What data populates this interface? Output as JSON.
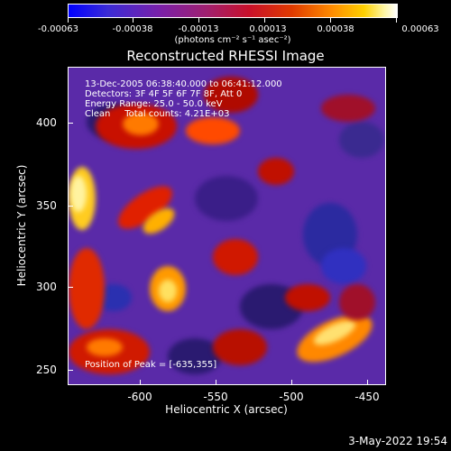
{
  "colorbar": {
    "tick_labels": [
      "-0.00063",
      "-0.00038",
      "-0.00013",
      "0.00013",
      "0.00038",
      "0.00063"
    ],
    "unit_label": "(photons cm⁻² s⁻¹ asec⁻²)"
  },
  "title": "Reconstructed RHESSI Image",
  "info": {
    "line1": "13-Dec-2005 06:38:40.000 to 06:41:12.000",
    "line2": "Detectors: 3F 4F 5F 6F 7F 8F, Att 0",
    "line3": "Energy Range: 25.0 - 50.0 keV",
    "line4": "Clean     Total counts: 4.21E+03",
    "peak": "Position of Peak = [-635,355]"
  },
  "x_axis": {
    "title": "Heliocentric X (arcsec)",
    "tick_labels": [
      "-600",
      "-550",
      "-500",
      "-450"
    ]
  },
  "y_axis": {
    "title": "Heliocentric Y (arcsec)",
    "tick_labels": [
      "400",
      "350",
      "300",
      "250"
    ]
  },
  "timestamp": "3-May-2022 19:54"
}
